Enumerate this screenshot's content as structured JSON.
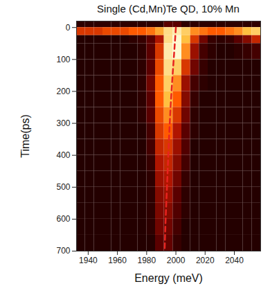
{
  "chart_data": {
    "type": "heatmap",
    "title": "Single (Cd,Mn)Te QD,  10% Mn",
    "x_label": "Energy (meV)",
    "y_label": "Time(ps)",
    "xlim": [
      1932,
      2058
    ],
    "xticks": [
      1940,
      1960,
      1980,
      2000,
      2020,
      2040
    ],
    "ylim": [
      700,
      -20
    ],
    "yticks": [
      0,
      100,
      200,
      300,
      400,
      500,
      600,
      700
    ],
    "x_edges": [
      1932,
      1938,
      1944,
      1950,
      1956,
      1962,
      1968,
      1974,
      1980,
      1986,
      1992,
      1998,
      2004,
      2010,
      2016,
      2022,
      2028,
      2034,
      2040,
      2046,
      2052,
      2058
    ],
    "y_edges": [
      -20,
      0,
      25,
      50,
      100,
      150,
      200,
      250,
      300,
      350,
      400,
      450,
      500,
      550,
      600,
      650,
      700
    ],
    "color_range": [
      0,
      1
    ],
    "cells": [
      [
        0.1,
        0.1,
        0.1,
        0.1,
        0.1,
        0.1,
        0.1,
        0.1,
        0.1,
        0.1,
        0.2,
        0.2,
        0.1,
        0.1,
        0.1,
        0.1,
        0.1,
        0.1,
        0.1,
        0.1,
        0.1
      ],
      [
        0.5,
        0.5,
        0.5,
        0.55,
        0.55,
        0.55,
        0.6,
        0.6,
        0.65,
        0.75,
        0.9,
        0.95,
        0.85,
        0.7,
        0.65,
        0.6,
        0.6,
        0.65,
        0.7,
        0.8,
        0.85
      ],
      [
        0.08,
        0.08,
        0.08,
        0.08,
        0.08,
        0.08,
        0.1,
        0.12,
        0.2,
        0.4,
        0.9,
        1.0,
        0.8,
        0.5,
        0.25,
        0.12,
        0.1,
        0.12,
        0.2,
        0.3,
        0.45
      ],
      [
        0.08,
        0.08,
        0.08,
        0.08,
        0.08,
        0.08,
        0.08,
        0.1,
        0.2,
        0.5,
        0.95,
        1.0,
        0.7,
        0.35,
        0.15,
        0.1,
        0.08,
        0.08,
        0.1,
        0.12,
        0.15
      ],
      [
        0.08,
        0.08,
        0.08,
        0.08,
        0.08,
        0.08,
        0.08,
        0.1,
        0.2,
        0.55,
        0.9,
        0.85,
        0.5,
        0.25,
        0.12,
        0.08,
        0.08,
        0.08,
        0.08,
        0.08,
        0.08
      ],
      [
        0.08,
        0.08,
        0.08,
        0.08,
        0.08,
        0.08,
        0.08,
        0.1,
        0.25,
        0.6,
        0.85,
        0.7,
        0.35,
        0.15,
        0.1,
        0.08,
        0.08,
        0.08,
        0.08,
        0.08,
        0.08
      ],
      [
        0.08,
        0.08,
        0.08,
        0.08,
        0.08,
        0.08,
        0.08,
        0.1,
        0.2,
        0.6,
        0.8,
        0.6,
        0.3,
        0.12,
        0.08,
        0.08,
        0.08,
        0.08,
        0.08,
        0.08,
        0.08
      ],
      [
        0.08,
        0.08,
        0.08,
        0.08,
        0.08,
        0.08,
        0.08,
        0.1,
        0.2,
        0.55,
        0.7,
        0.5,
        0.25,
        0.1,
        0.08,
        0.08,
        0.08,
        0.08,
        0.08,
        0.08,
        0.08
      ],
      [
        0.08,
        0.08,
        0.08,
        0.08,
        0.08,
        0.08,
        0.08,
        0.08,
        0.15,
        0.5,
        0.6,
        0.4,
        0.2,
        0.1,
        0.08,
        0.08,
        0.08,
        0.08,
        0.08,
        0.08,
        0.08
      ],
      [
        0.08,
        0.08,
        0.08,
        0.08,
        0.08,
        0.08,
        0.08,
        0.08,
        0.15,
        0.45,
        0.5,
        0.35,
        0.18,
        0.08,
        0.08,
        0.08,
        0.08,
        0.08,
        0.08,
        0.08,
        0.08
      ],
      [
        0.08,
        0.08,
        0.08,
        0.08,
        0.08,
        0.08,
        0.08,
        0.08,
        0.12,
        0.4,
        0.45,
        0.3,
        0.15,
        0.08,
        0.08,
        0.08,
        0.08,
        0.08,
        0.08,
        0.08,
        0.08
      ],
      [
        0.08,
        0.08,
        0.08,
        0.08,
        0.08,
        0.08,
        0.08,
        0.08,
        0.1,
        0.35,
        0.4,
        0.25,
        0.12,
        0.08,
        0.08,
        0.08,
        0.08,
        0.08,
        0.08,
        0.08,
        0.08
      ],
      [
        0.08,
        0.08,
        0.08,
        0.08,
        0.08,
        0.08,
        0.08,
        0.08,
        0.1,
        0.3,
        0.35,
        0.2,
        0.1,
        0.08,
        0.08,
        0.08,
        0.08,
        0.08,
        0.08,
        0.08,
        0.08
      ],
      [
        0.08,
        0.08,
        0.08,
        0.08,
        0.08,
        0.08,
        0.08,
        0.08,
        0.1,
        0.28,
        0.3,
        0.18,
        0.1,
        0.08,
        0.08,
        0.08,
        0.08,
        0.08,
        0.08,
        0.08,
        0.08
      ],
      [
        0.08,
        0.08,
        0.08,
        0.08,
        0.08,
        0.08,
        0.08,
        0.08,
        0.1,
        0.25,
        0.25,
        0.15,
        0.08,
        0.08,
        0.08,
        0.08,
        0.08,
        0.08,
        0.08,
        0.08,
        0.08
      ],
      [
        0.08,
        0.08,
        0.08,
        0.08,
        0.08,
        0.08,
        0.08,
        0.08,
        0.08,
        0.2,
        0.22,
        0.12,
        0.08,
        0.08,
        0.08,
        0.08,
        0.08,
        0.08,
        0.08,
        0.08,
        0.08
      ]
    ],
    "fit_line": {
      "x": [
        2000,
        1998.5,
        1997,
        1995.8,
        1994.8,
        1993.9,
        1993,
        1992.3
      ],
      "y": [
        0,
        100,
        200,
        300,
        400,
        500,
        600,
        700
      ],
      "color": "#e8231f",
      "line_style": "dashed"
    }
  }
}
